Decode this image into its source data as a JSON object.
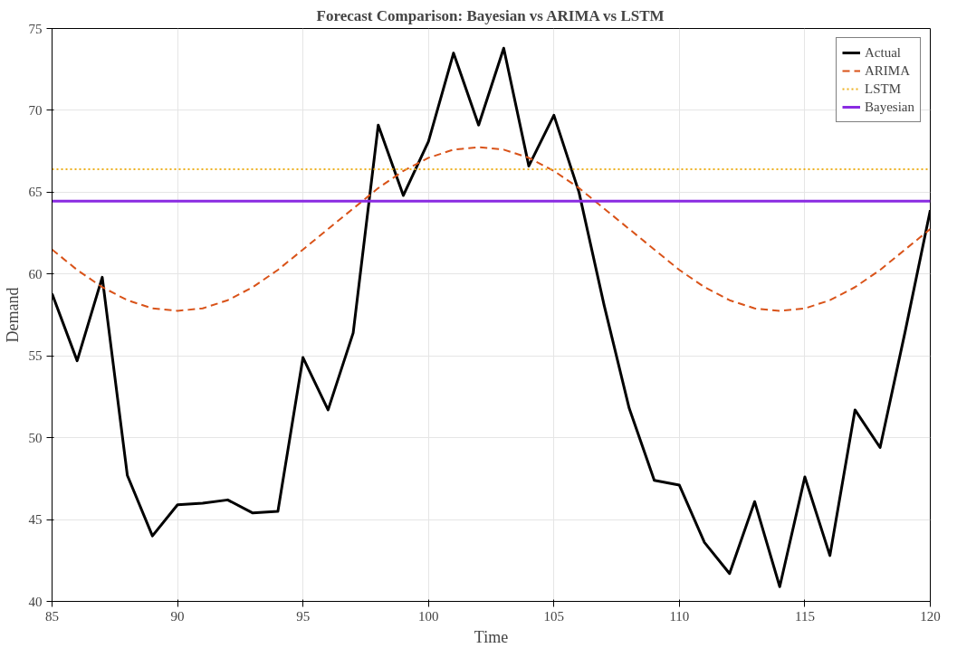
{
  "chart_data": {
    "type": "line",
    "title": "Forecast Comparison: Bayesian vs ARIMA vs LSTM",
    "xlabel": "Time",
    "ylabel": "Demand",
    "x": [
      85,
      86,
      87,
      88,
      89,
      90,
      91,
      92,
      93,
      94,
      95,
      96,
      97,
      98,
      99,
      100,
      101,
      102,
      103,
      104,
      105,
      106,
      107,
      108,
      109,
      110,
      111,
      112,
      113,
      114,
      115,
      116,
      117,
      118,
      119,
      120
    ],
    "series": [
      {
        "name": "Actual",
        "color": "#000000",
        "line_style": "solid",
        "values": [
          58.8,
          54.7,
          59.8,
          47.7,
          44.0,
          45.9,
          46.0,
          46.2,
          45.4,
          45.5,
          54.9,
          51.7,
          56.4,
          69.1,
          64.8,
          68.1,
          73.5,
          69.1,
          73.8,
          66.6,
          69.7,
          65.0,
          58.1,
          51.8,
          47.4,
          47.1,
          43.6,
          41.7,
          46.1,
          40.9,
          47.6,
          42.8,
          51.7,
          49.4,
          56.5,
          63.9
        ]
      },
      {
        "name": "ARIMA",
        "color": "#d95319",
        "line_style": "dashed",
        "values": [
          61.5,
          60.25,
          59.2,
          58.4,
          57.9,
          57.75,
          57.9,
          58.4,
          59.2,
          60.25,
          61.5,
          62.75,
          64.0,
          65.25,
          66.3,
          67.1,
          67.6,
          67.75,
          67.6,
          67.1,
          66.3,
          65.25,
          64.0,
          62.75,
          61.5,
          60.25,
          59.2,
          58.4,
          57.9,
          57.75,
          57.9,
          58.4,
          59.2,
          60.25,
          61.5,
          62.75
        ]
      },
      {
        "name": "LSTM",
        "color": "#edb120",
        "line_style": "dotted",
        "values": [
          66.4,
          66.4,
          66.4,
          66.4,
          66.4,
          66.4,
          66.4,
          66.4,
          66.4,
          66.4,
          66.4,
          66.4,
          66.4,
          66.4,
          66.4,
          66.4,
          66.4,
          66.4,
          66.4,
          66.4,
          66.4,
          66.4,
          66.4,
          66.4,
          66.4,
          66.4,
          66.4,
          66.4,
          66.4,
          66.4,
          66.4,
          66.4,
          66.4,
          66.4,
          66.4,
          66.4
        ]
      },
      {
        "name": "Bayesian",
        "color": "#8a2be2",
        "line_style": "solid",
        "values": [
          64.45,
          64.45,
          64.45,
          64.45,
          64.45,
          64.45,
          64.45,
          64.45,
          64.45,
          64.45,
          64.45,
          64.45,
          64.45,
          64.45,
          64.45,
          64.45,
          64.45,
          64.45,
          64.45,
          64.45,
          64.45,
          64.45,
          64.45,
          64.45,
          64.45,
          64.45,
          64.45,
          64.45,
          64.45,
          64.45,
          64.45,
          64.45,
          64.45,
          64.45,
          64.45,
          64.45
        ]
      }
    ],
    "xlim": [
      85,
      120
    ],
    "ylim": [
      40,
      75
    ],
    "xticks": [
      85,
      90,
      95,
      100,
      105,
      110,
      115,
      120
    ],
    "yticks": [
      40,
      45,
      50,
      55,
      60,
      65,
      70,
      75
    ],
    "grid": true,
    "legend": "top right"
  }
}
